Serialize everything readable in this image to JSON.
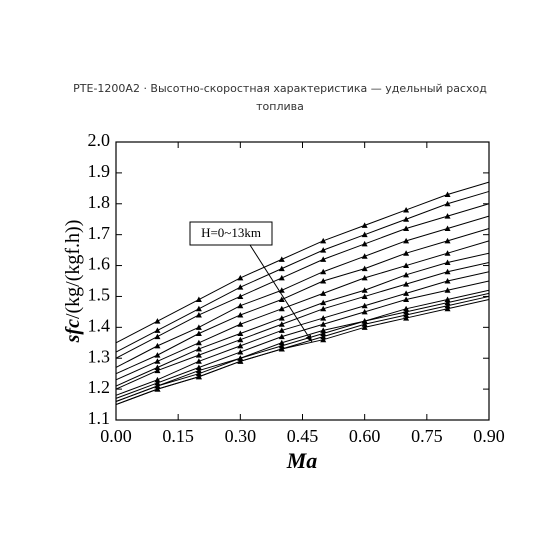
{
  "chart_data": {
    "type": "line",
    "title": "PTE-1200A2 · Высотно-скоростная характеристика — удельный расход топлива",
    "xlabel": "Ma",
    "ylabel_symbol": "sfc",
    "ylabel_unit": "/(kg/(kgf.h))",
    "annotation": "H=0~13km",
    "x": [
      0,
      0.1,
      0.2,
      0.3,
      0.4,
      0.5,
      0.6,
      0.7,
      0.8,
      0.9
    ],
    "xlim": [
      0,
      0.9
    ],
    "xticks": [
      {
        "value": 0,
        "label": "0.00"
      },
      {
        "value": 0.15,
        "label": "0.15"
      },
      {
        "value": 0.3,
        "label": "0.30"
      },
      {
        "value": 0.45,
        "label": "0.45"
      },
      {
        "value": 0.6,
        "label": "0.60"
      },
      {
        "value": 0.75,
        "label": "0.75"
      },
      {
        "value": 0.9,
        "label": "0.90"
      }
    ],
    "ylim": [
      1.1,
      2.0
    ],
    "yticks": [
      1.1,
      1.2,
      1.3,
      1.4,
      1.5,
      1.6,
      1.7,
      1.8,
      1.9,
      {
        "value": 2.0,
        "label": "2.0"
      }
    ],
    "grid": false,
    "series": [
      {
        "color": "#000000",
        "values": [
          1.35,
          1.42,
          1.49,
          1.56,
          1.62,
          1.68,
          1.73,
          1.78,
          1.83,
          1.87
        ]
      },
      {
        "color": "#000000",
        "values": [
          1.32,
          1.39,
          1.46,
          1.53,
          1.59,
          1.65,
          1.7,
          1.75,
          1.8,
          1.84
        ]
      },
      {
        "color": "#000000",
        "values": [
          1.3,
          1.37,
          1.44,
          1.5,
          1.56,
          1.62,
          1.67,
          1.72,
          1.76,
          1.8
        ]
      },
      {
        "color": "#000000",
        "values": [
          1.27,
          1.34,
          1.4,
          1.47,
          1.52,
          1.58,
          1.63,
          1.68,
          1.72,
          1.76
        ]
      },
      {
        "color": "#000000",
        "values": [
          1.25,
          1.31,
          1.38,
          1.44,
          1.49,
          1.55,
          1.59,
          1.64,
          1.68,
          1.72
        ]
      },
      {
        "color": "#000000",
        "values": [
          1.23,
          1.29,
          1.35,
          1.41,
          1.46,
          1.51,
          1.56,
          1.6,
          1.64,
          1.68
        ]
      },
      {
        "color": "#000000",
        "values": [
          1.21,
          1.27,
          1.33,
          1.38,
          1.43,
          1.48,
          1.52,
          1.57,
          1.61,
          1.64
        ]
      },
      {
        "color": "#000000",
        "values": [
          1.2,
          1.26,
          1.31,
          1.36,
          1.41,
          1.46,
          1.5,
          1.54,
          1.58,
          1.61
        ]
      },
      {
        "color": "#000000",
        "values": [
          1.18,
          1.23,
          1.29,
          1.34,
          1.39,
          1.43,
          1.47,
          1.51,
          1.55,
          1.58
        ]
      },
      {
        "color": "#000000",
        "values": [
          1.17,
          1.22,
          1.27,
          1.32,
          1.37,
          1.41,
          1.45,
          1.49,
          1.52,
          1.55
        ]
      },
      {
        "color": "#000000",
        "values": [
          1.16,
          1.21,
          1.26,
          1.3,
          1.35,
          1.39,
          1.42,
          1.46,
          1.49,
          1.52
        ]
      },
      {
        "color": "#000000",
        "values": [
          1.16,
          1.21,
          1.25,
          1.3,
          1.34,
          1.38,
          1.42,
          1.45,
          1.48,
          1.51
        ]
      },
      {
        "color": "#000000",
        "values": [
          1.15,
          1.2,
          1.24,
          1.29,
          1.33,
          1.37,
          1.41,
          1.44,
          1.47,
          1.5
        ]
      },
      {
        "color": "#000000",
        "values": [
          1.15,
          1.2,
          1.24,
          1.29,
          1.33,
          1.36,
          1.4,
          1.43,
          1.46,
          1.49
        ]
      }
    ]
  }
}
